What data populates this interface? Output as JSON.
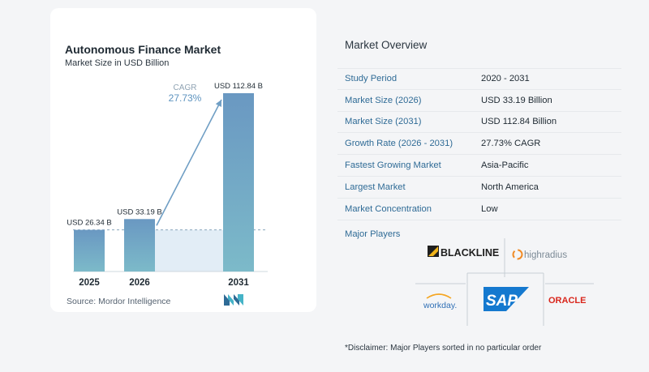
{
  "chart_data": {
    "type": "bar",
    "title": "Autonomous Finance Market",
    "subtitle": "Market Size in USD Billion",
    "categories": [
      "2025",
      "2026",
      "2031"
    ],
    "values": [
      26.34,
      33.19,
      112.84
    ],
    "value_labels": [
      "USD 26.34 B",
      "USD 33.19 B",
      "USD 112.84 B"
    ],
    "unit": "USD Billion",
    "cagr_label": "CAGR",
    "cagr_value": "27.73%",
    "grid": false,
    "legend": "none",
    "colors": {
      "bar_top": "#6f9ec4",
      "bar_bottom": "#7bb8c9",
      "trend_area": "#e1ecf5",
      "arrow": "#6f9ec4",
      "cagr_text": "#5d93bf"
    }
  },
  "source": "Source: Mordor Intelligence",
  "overview": {
    "title": "Market Overview",
    "rows": [
      {
        "label": "Study Period",
        "value": "2020 - 2031"
      },
      {
        "label": "Market Size (2026)",
        "value": "USD 33.19 Billion"
      },
      {
        "label": "Market Size (2031)",
        "value": "USD 112.84 Billion"
      },
      {
        "label": "Growth Rate (2026 - 2031)",
        "value": "27.73% CAGR"
      },
      {
        "label": "Fastest Growing Market",
        "value": "Asia-Pacific"
      },
      {
        "label": "Largest Market",
        "value": "North America"
      },
      {
        "label": "Market Concentration",
        "value": "Low"
      }
    ]
  },
  "players": {
    "title": "Major Players",
    "logos": [
      "BLACKLINE",
      "highradius",
      "workday.",
      "SAP",
      "ORACLE"
    ]
  },
  "disclaimer": "*Disclaimer: Major Players sorted in no particular order"
}
